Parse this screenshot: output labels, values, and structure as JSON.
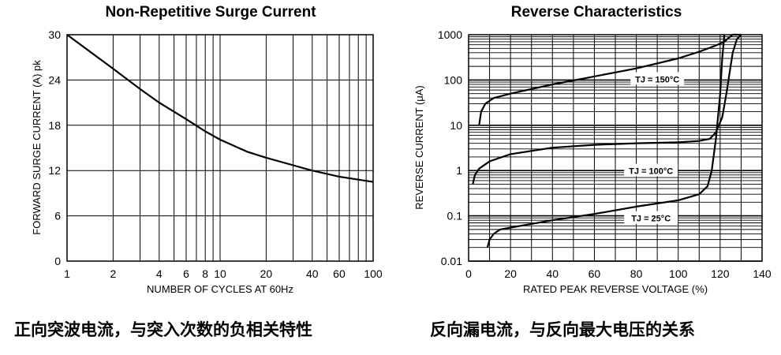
{
  "charts": {
    "left": {
      "title": "Non-Repetitive Surge Current",
      "xlabel": "NUMBER OF CYCLES AT 60Hz",
      "ylabel": "FORWARD SURGE CURRENT (A) pk",
      "caption": "正向突波电流，与突入次数的负相关特性"
    },
    "right": {
      "title": "Reverse Characteristics",
      "xlabel": "RATED PEAK REVERSE VOLTAGE (%)",
      "ylabel": "REVERSE CURRENT (μA)",
      "caption": "反向漏电流，与反向最大电压的关系"
    }
  },
  "chart_data": [
    {
      "type": "line",
      "title": "Non-Repetitive Surge Current",
      "xlabel": "NUMBER OF CYCLES AT 60Hz",
      "ylabel": "FORWARD SURGE CURRENT (A) pk",
      "xscale": "log",
      "xlim": [
        1,
        100
      ],
      "ylim": [
        0,
        30
      ],
      "x_ticks": [
        "1",
        "2",
        "4",
        "6",
        "8",
        "10",
        "20",
        "40",
        "60",
        "100"
      ],
      "y_ticks": [
        "0",
        "6",
        "12",
        "18",
        "24",
        "30"
      ],
      "grid": true,
      "series": [
        {
          "x": [
            1,
            2,
            3,
            4,
            6,
            8,
            10,
            15,
            20,
            30,
            40,
            60,
            80,
            100
          ],
          "y": [
            30,
            25.5,
            22.8,
            21,
            18.8,
            17.2,
            16.1,
            14.5,
            13.7,
            12.7,
            12.0,
            11.2,
            10.8,
            10.5
          ]
        }
      ]
    },
    {
      "type": "line",
      "title": "Reverse Characteristics",
      "xlabel": "RATED PEAK REVERSE VOLTAGE (%)",
      "ylabel": "REVERSE CURRENT (μA)",
      "yscale": "log",
      "xlim": [
        0,
        140
      ],
      "ylim": [
        0.01,
        1000
      ],
      "x_ticks": [
        "0",
        "20",
        "40",
        "60",
        "80",
        "100",
        "120",
        "140"
      ],
      "y_ticks": [
        "0.01",
        "0.1",
        "1",
        "10",
        "100",
        "1000"
      ],
      "grid": true,
      "annotations": [
        "TJ = 150°C",
        "TJ = 100°C",
        "TJ = 25°C"
      ],
      "series": [
        {
          "name": "TJ = 150°C",
          "x": [
            5,
            6,
            8,
            12,
            20,
            40,
            60,
            80,
            100,
            110,
            118,
            122,
            124,
            126,
            130
          ],
          "y": [
            10,
            20,
            30,
            40,
            50,
            80,
            120,
            180,
            300,
            420,
            580,
            700,
            850,
            1000,
            1000
          ]
        },
        {
          "name": "TJ = 100°C",
          "x": [
            2,
            3,
            5,
            10,
            20,
            40,
            60,
            80,
            100,
            110,
            115,
            118,
            121,
            123,
            125,
            126,
            128,
            130
          ],
          "y": [
            0.5,
            0.8,
            1.1,
            1.6,
            2.3,
            3.2,
            3.7,
            4.0,
            4.2,
            4.5,
            5.0,
            7,
            15,
            50,
            200,
            400,
            800,
            1000
          ]
        },
        {
          "name": "TJ = 25°C",
          "x": [
            9,
            10,
            12,
            15,
            20,
            40,
            60,
            80,
            100,
            110,
            114,
            116,
            118,
            120,
            121,
            122
          ],
          "y": [
            0.02,
            0.03,
            0.04,
            0.05,
            0.055,
            0.08,
            0.11,
            0.16,
            0.22,
            0.3,
            0.45,
            1.0,
            5,
            50,
            300,
            1000
          ]
        }
      ]
    }
  ]
}
